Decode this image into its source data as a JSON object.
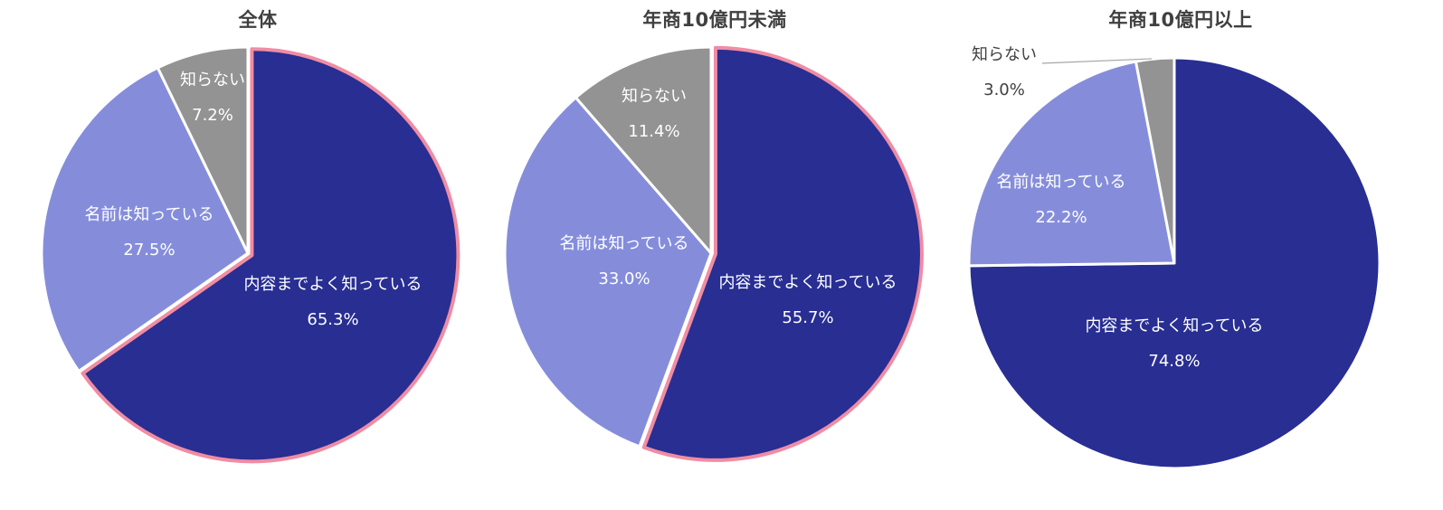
{
  "chart_data": [
    {
      "type": "pie",
      "title": "全体",
      "slices": [
        {
          "label": "内容までよく知っている",
          "value": 65.3,
          "value_label": "65.3%",
          "color": "#282e92",
          "highlight": true
        },
        {
          "label": "名前は知っている",
          "value": 27.5,
          "value_label": "27.5%",
          "color": "#858ddb",
          "highlight": false
        },
        {
          "label": "知らない",
          "value": 7.2,
          "value_label": "7.2%",
          "color": "#939393",
          "highlight": false
        }
      ]
    },
    {
      "type": "pie",
      "title": "年商10億円未満",
      "slices": [
        {
          "label": "内容までよく知っている",
          "value": 55.7,
          "value_label": "55.7%",
          "color": "#282e92",
          "highlight": true
        },
        {
          "label": "名前は知っている",
          "value": 33.0,
          "value_label": "33.0%",
          "color": "#858ddb",
          "highlight": false
        },
        {
          "label": "知らない",
          "value": 11.4,
          "value_label": "11.4%",
          "color": "#939393",
          "highlight": false
        }
      ]
    },
    {
      "type": "pie",
      "title": "年商10億円以上",
      "slices": [
        {
          "label": "内容までよく知っている",
          "value": 74.8,
          "value_label": "74.8%",
          "color": "#282e92",
          "highlight": false
        },
        {
          "label": "名前は知っている",
          "value": 22.2,
          "value_label": "22.2%",
          "color": "#858ddb",
          "highlight": false
        },
        {
          "label": "知らない",
          "value": 3.0,
          "value_label": "3.0%",
          "color": "#939393",
          "highlight": false
        }
      ]
    }
  ],
  "colors": {
    "highlight_border": "#f08ca3",
    "separator": "#ffffff",
    "leader_line": "#a6a6a6"
  }
}
